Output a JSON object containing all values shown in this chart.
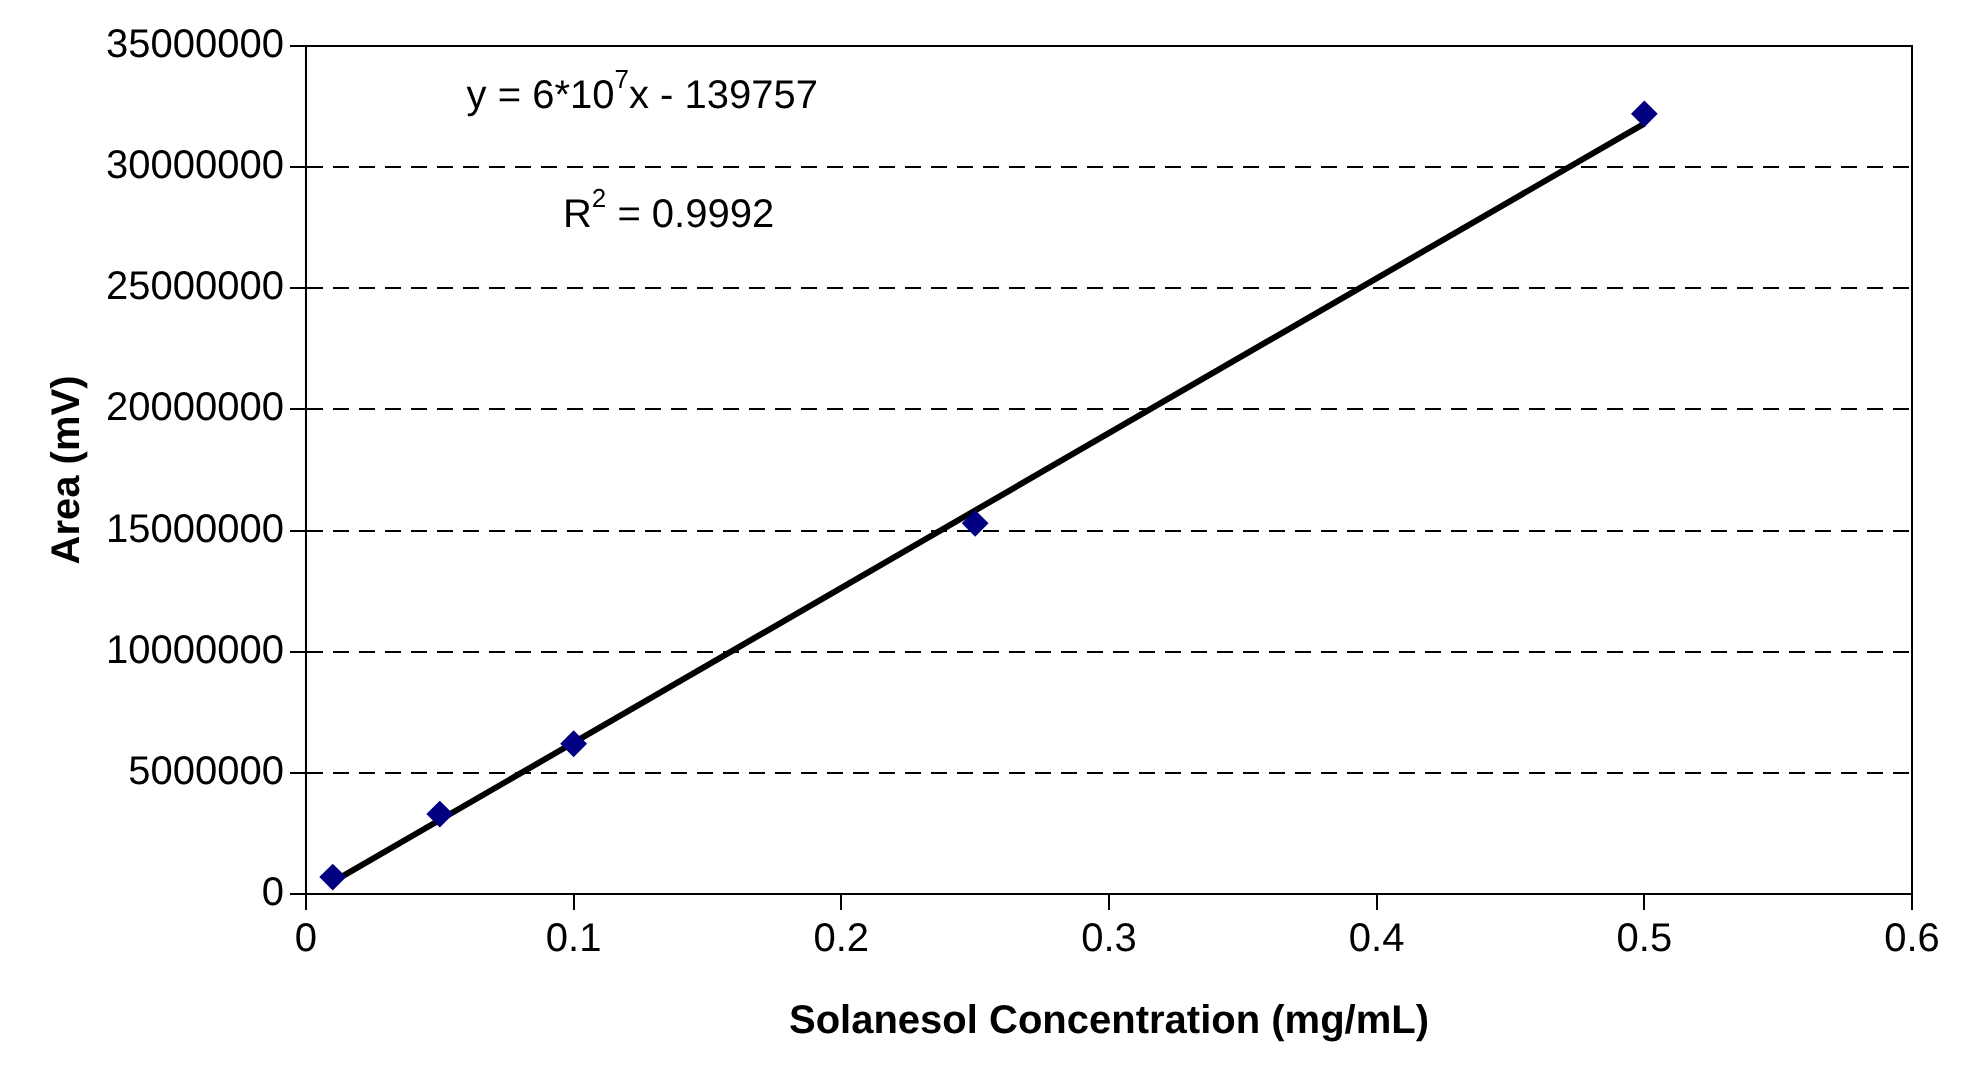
{
  "chart_data": {
    "type": "scatter",
    "xlabel": "Solanesol Concentration (mg/mL)",
    "ylabel": "Area (mV)",
    "annotations": [
      "y = 6*10$^{7}$x - 139757",
      "R$^{2}$ = 0.9992"
    ],
    "series": [
      {
        "type": "scatter",
        "color": "#000080",
        "marker": "diamond",
        "x": [
          0.01,
          0.05,
          0.1,
          0.25,
          0.5
        ],
        "values": [
          700000,
          3300000,
          6200000,
          15300000,
          32200000
        ]
      },
      {
        "type": "line",
        "color": "#000000",
        "marker": "none",
        "line_style": "solid",
        "x": [
          0.01,
          0.5
        ],
        "values": [
          500000,
          31800000
        ]
      }
    ],
    "xlim": [
      0,
      0.6
    ],
    "xticks": [
      0,
      0.1,
      0.2,
      0.3,
      0.4,
      0.5,
      0.6
    ],
    "ylim": [
      0,
      35000000
    ],
    "yticks": [
      0,
      5000000,
      10000000,
      15000000,
      20000000,
      25000000,
      30000000,
      35000000
    ],
    "grid": "y",
    "legend": false
  }
}
